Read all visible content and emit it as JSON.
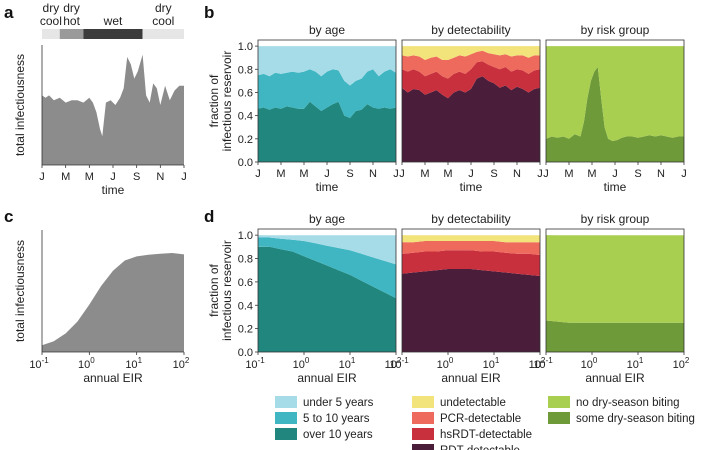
{
  "panel_labels": {
    "a": "a",
    "b": "b",
    "c": "c",
    "d": "d"
  },
  "colors": {
    "grey": "#8c8c8c",
    "under5": "#a6dce8",
    "y5to10": "#3fb6c2",
    "over10": "#21877e",
    "undetectable": "#f2e37a",
    "pcr": "#ee6a5c",
    "hsrdt": "#c9303e",
    "rdt": "#4a1d3a",
    "nodry": "#a9cf51",
    "somedry": "#6e9a3a",
    "season_light": "#e6e6e6",
    "season_mid": "#9a9a9a",
    "season_dark": "#3b3b3b"
  },
  "seasons": [
    {
      "name": "dry cool",
      "line1": "dry",
      "line2": "cool",
      "start": 0.0,
      "end": 1.5,
      "shade": "light"
    },
    {
      "name": "dry hot",
      "line1": "dry",
      "line2": "hot",
      "start": 1.5,
      "end": 3.5,
      "shade": "mid"
    },
    {
      "name": "wet",
      "line1": "wet",
      "line2": "",
      "start": 3.5,
      "end": 8.5,
      "shade": "dark"
    },
    {
      "name": "dry cool",
      "line1": "dry",
      "line2": "cool",
      "start": 8.5,
      "end": 12.0,
      "shade": "light"
    }
  ],
  "legend": {
    "age": [
      "under 5 years",
      "5 to 10 years",
      "over 10 years"
    ],
    "detectability": [
      "undetectable",
      "PCR-detectable",
      "hsRDT-detectable",
      "RDT-detectable"
    ],
    "risk": [
      "no dry-season biting",
      "some dry-season biting"
    ]
  },
  "chart_data": [
    {
      "id": "a",
      "type": "area",
      "title": "",
      "xlabel": "time",
      "ylabel": "total infectiousness",
      "xticks": [
        "J",
        "M",
        "M",
        "J",
        "S",
        "N",
        "J"
      ],
      "xtick_months": [
        0,
        2,
        4,
        6,
        8,
        10,
        12
      ],
      "xlim": [
        0,
        12
      ],
      "ylim": [
        0,
        5.0
      ],
      "x": [
        0,
        0.3,
        0.6,
        1.0,
        1.5,
        2.0,
        2.5,
        3.0,
        3.5,
        4.0,
        4.3,
        4.6,
        4.9,
        5.1,
        5.4,
        5.8,
        6.2,
        6.6,
        6.9,
        7.2,
        7.5,
        7.8,
        8.1,
        8.5,
        8.8,
        9.1,
        9.4,
        9.7,
        10.0,
        10.4,
        10.8,
        11.2,
        11.6,
        12.0
      ],
      "values": [
        2.9,
        2.8,
        2.9,
        2.7,
        2.8,
        2.6,
        2.7,
        2.7,
        2.6,
        2.8,
        2.6,
        2.2,
        1.5,
        1.2,
        2.6,
        2.7,
        2.5,
        2.8,
        3.2,
        4.5,
        4.2,
        3.6,
        3.9,
        4.6,
        2.9,
        2.6,
        3.4,
        3.2,
        2.5,
        3.3,
        2.7,
        3.1,
        3.3,
        3.3
      ]
    },
    {
      "id": "b-age",
      "type": "area",
      "title": "by age",
      "xlabel": "time",
      "ylabel": "fraction of infectious reservoir",
      "yticks": [
        "0.0",
        "0.2",
        "0.4",
        "0.6",
        "0.8",
        "1.0"
      ],
      "xticks": [
        "J",
        "M",
        "M",
        "J",
        "S",
        "N",
        "J"
      ],
      "xtick_months": [
        0,
        2,
        4,
        6,
        8,
        10,
        12
      ],
      "x": [
        0,
        0.5,
        1,
        1.5,
        2,
        2.5,
        3,
        3.5,
        4,
        4.5,
        5,
        5.5,
        6,
        6.5,
        7,
        7.5,
        8,
        8.5,
        9,
        9.5,
        10,
        10.5,
        11,
        11.5,
        12
      ],
      "series": [
        {
          "name": "over 10 years",
          "values": [
            0.46,
            0.47,
            0.45,
            0.47,
            0.46,
            0.48,
            0.47,
            0.46,
            0.46,
            0.52,
            0.48,
            0.44,
            0.47,
            0.5,
            0.52,
            0.4,
            0.38,
            0.44,
            0.45,
            0.5,
            0.47,
            0.46,
            0.47,
            0.46,
            0.47
          ]
        },
        {
          "name": "5 to 10 years",
          "values": [
            0.75,
            0.76,
            0.74,
            0.77,
            0.76,
            0.77,
            0.78,
            0.77,
            0.78,
            0.8,
            0.78,
            0.74,
            0.78,
            0.8,
            0.79,
            0.7,
            0.66,
            0.7,
            0.72,
            0.78,
            0.8,
            0.74,
            0.78,
            0.8,
            0.77
          ]
        },
        {
          "name": "under 5 years",
          "values": [
            1,
            1,
            1,
            1,
            1,
            1,
            1,
            1,
            1,
            1,
            1,
            1,
            1,
            1,
            1,
            1,
            1,
            1,
            1,
            1,
            1,
            1,
            1,
            1,
            1
          ]
        }
      ]
    },
    {
      "id": "b-det",
      "type": "area",
      "title": "by detectability",
      "xlabel": "time",
      "xticks": [
        "J",
        "M",
        "M",
        "J",
        "S",
        "N",
        "J"
      ],
      "xtick_months": [
        0,
        2,
        4,
        6,
        8,
        10,
        12
      ],
      "x": [
        0,
        0.5,
        1,
        1.5,
        2,
        2.5,
        3,
        3.5,
        4,
        4.5,
        5,
        5.5,
        6,
        6.5,
        7,
        7.5,
        8,
        8.5,
        9,
        9.5,
        10,
        10.5,
        11,
        11.5,
        12
      ],
      "series": [
        {
          "name": "RDT-detectable",
          "values": [
            0.64,
            0.6,
            0.63,
            0.62,
            0.58,
            0.6,
            0.62,
            0.58,
            0.55,
            0.6,
            0.62,
            0.6,
            0.63,
            0.72,
            0.74,
            0.7,
            0.68,
            0.64,
            0.66,
            0.62,
            0.65,
            0.63,
            0.6,
            0.63,
            0.64
          ]
        },
        {
          "name": "hsRDT-detectable",
          "values": [
            0.8,
            0.78,
            0.8,
            0.78,
            0.74,
            0.76,
            0.78,
            0.74,
            0.72,
            0.76,
            0.78,
            0.76,
            0.8,
            0.86,
            0.87,
            0.84,
            0.82,
            0.8,
            0.82,
            0.78,
            0.8,
            0.79,
            0.76,
            0.79,
            0.8
          ]
        },
        {
          "name": "PCR-detectable",
          "values": [
            0.92,
            0.91,
            0.92,
            0.91,
            0.88,
            0.9,
            0.91,
            0.88,
            0.88,
            0.9,
            0.92,
            0.91,
            0.93,
            0.95,
            0.96,
            0.94,
            0.93,
            0.92,
            0.93,
            0.91,
            0.92,
            0.92,
            0.9,
            0.92,
            0.92
          ]
        },
        {
          "name": "undetectable",
          "values": [
            1,
            1,
            1,
            1,
            1,
            1,
            1,
            1,
            1,
            1,
            1,
            1,
            1,
            1,
            1,
            1,
            1,
            1,
            1,
            1,
            1,
            1,
            1,
            1,
            1
          ]
        }
      ]
    },
    {
      "id": "b-risk",
      "type": "area",
      "title": "by risk group",
      "xlabel": "time",
      "xticks": [
        "J",
        "M",
        "M",
        "J",
        "S",
        "N",
        "J"
      ],
      "xtick_months": [
        0,
        2,
        4,
        6,
        8,
        10,
        12
      ],
      "x": [
        0,
        0.5,
        1,
        1.5,
        2,
        2.5,
        3,
        3.3,
        3.6,
        3.9,
        4.2,
        4.5,
        4.8,
        5.1,
        5.4,
        5.8,
        6.2,
        6.6,
        7,
        7.5,
        8,
        8.5,
        9,
        9.5,
        10,
        10.5,
        11,
        11.5,
        12
      ],
      "series": [
        {
          "name": "some dry-season biting",
          "values": [
            0.2,
            0.22,
            0.21,
            0.22,
            0.2,
            0.24,
            0.22,
            0.35,
            0.55,
            0.7,
            0.78,
            0.82,
            0.55,
            0.3,
            0.2,
            0.18,
            0.19,
            0.21,
            0.22,
            0.22,
            0.21,
            0.22,
            0.23,
            0.22,
            0.23,
            0.22,
            0.21,
            0.22,
            0.22
          ]
        },
        {
          "name": "no dry-season biting",
          "values": [
            1,
            1,
            1,
            1,
            1,
            1,
            1,
            1,
            1,
            1,
            1,
            1,
            1,
            1,
            1,
            1,
            1,
            1,
            1,
            1,
            1,
            1,
            1,
            1,
            1,
            1,
            1,
            1,
            1
          ]
        }
      ]
    },
    {
      "id": "c",
      "type": "area",
      "title": "",
      "xlabel": "annual EIR",
      "ylabel": "total infectiousness",
      "xticks_base": [
        "10",
        "10",
        "10",
        "10"
      ],
      "xticks_exp": [
        "-1",
        "0",
        "1",
        "2"
      ],
      "xtick_log": [
        -1,
        0,
        1,
        2
      ],
      "xlim_log": [
        -1,
        2
      ],
      "ylim": [
        0,
        3.6
      ],
      "x_log": [
        -1,
        -0.75,
        -0.5,
        -0.25,
        0,
        0.25,
        0.5,
        0.75,
        1,
        1.25,
        1.5,
        1.75,
        2
      ],
      "values": [
        0.2,
        0.32,
        0.55,
        0.9,
        1.4,
        1.95,
        2.4,
        2.7,
        2.82,
        2.87,
        2.9,
        2.92,
        2.88
      ]
    },
    {
      "id": "d-age",
      "type": "area",
      "title": "by age",
      "xlabel": "annual EIR",
      "ylabel": "fraction of infectious reservoir",
      "yticks": [
        "0.0",
        "0.2",
        "0.4",
        "0.6",
        "0.8",
        "1.0"
      ],
      "xticks_base": [
        "10",
        "10",
        "10",
        "10"
      ],
      "xticks_exp": [
        "-1",
        "0",
        "1",
        "2"
      ],
      "xtick_log": [
        -1,
        0,
        1,
        2
      ],
      "x_log": [
        -1,
        -0.75,
        -0.5,
        -0.25,
        0,
        0.25,
        0.5,
        0.75,
        1,
        1.25,
        1.5,
        1.75,
        2
      ],
      "series": [
        {
          "name": "over 10 years",
          "values": [
            0.9,
            0.9,
            0.88,
            0.86,
            0.82,
            0.78,
            0.74,
            0.7,
            0.66,
            0.61,
            0.56,
            0.51,
            0.46
          ]
        },
        {
          "name": "5 to 10 years",
          "values": [
            0.98,
            0.98,
            0.97,
            0.96,
            0.95,
            0.93,
            0.91,
            0.89,
            0.87,
            0.84,
            0.81,
            0.78,
            0.75
          ]
        },
        {
          "name": "under 5 years",
          "values": [
            1,
            1,
            1,
            1,
            1,
            1,
            1,
            1,
            1,
            1,
            1,
            1,
            1
          ]
        }
      ]
    },
    {
      "id": "d-det",
      "type": "area",
      "title": "by detectability",
      "xlabel": "annual EIR",
      "xticks_base": [
        "10",
        "10",
        "10",
        "10"
      ],
      "xticks_exp": [
        "-1",
        "0",
        "1",
        "2"
      ],
      "xtick_log": [
        -1,
        0,
        1,
        2
      ],
      "x_log": [
        -1,
        -0.75,
        -0.5,
        -0.25,
        0,
        0.25,
        0.5,
        0.75,
        1,
        1.25,
        1.5,
        1.75,
        2
      ],
      "series": [
        {
          "name": "RDT-detectable",
          "values": [
            0.67,
            0.68,
            0.69,
            0.7,
            0.71,
            0.71,
            0.71,
            0.7,
            0.69,
            0.68,
            0.67,
            0.66,
            0.65
          ]
        },
        {
          "name": "hsRDT-detectable",
          "values": [
            0.84,
            0.85,
            0.86,
            0.86,
            0.87,
            0.87,
            0.87,
            0.86,
            0.86,
            0.85,
            0.84,
            0.84,
            0.83
          ]
        },
        {
          "name": "PCR-detectable",
          "values": [
            0.94,
            0.94,
            0.95,
            0.95,
            0.95,
            0.95,
            0.95,
            0.95,
            0.95,
            0.94,
            0.94,
            0.94,
            0.94
          ]
        },
        {
          "name": "undetectable",
          "values": [
            1,
            1,
            1,
            1,
            1,
            1,
            1,
            1,
            1,
            1,
            1,
            1,
            1
          ]
        }
      ]
    },
    {
      "id": "d-risk",
      "type": "area",
      "title": "by risk group",
      "xlabel": "annual EIR",
      "xticks_base": [
        "10",
        "10",
        "10",
        "10"
      ],
      "xticks_exp": [
        "-1",
        "0",
        "1",
        "2"
      ],
      "xtick_log": [
        -1,
        0,
        1,
        2
      ],
      "x_log": [
        -1,
        -0.75,
        -0.5,
        -0.25,
        0,
        0.25,
        0.5,
        0.75,
        1,
        1.25,
        1.5,
        1.75,
        2
      ],
      "series": [
        {
          "name": "some dry-season biting",
          "values": [
            0.27,
            0.26,
            0.25,
            0.25,
            0.25,
            0.25,
            0.25,
            0.25,
            0.25,
            0.25,
            0.25,
            0.25,
            0.25
          ]
        },
        {
          "name": "no dry-season biting",
          "values": [
            1,
            1,
            1,
            1,
            1,
            1,
            1,
            1,
            1,
            1,
            1,
            1,
            1
          ]
        }
      ]
    }
  ]
}
